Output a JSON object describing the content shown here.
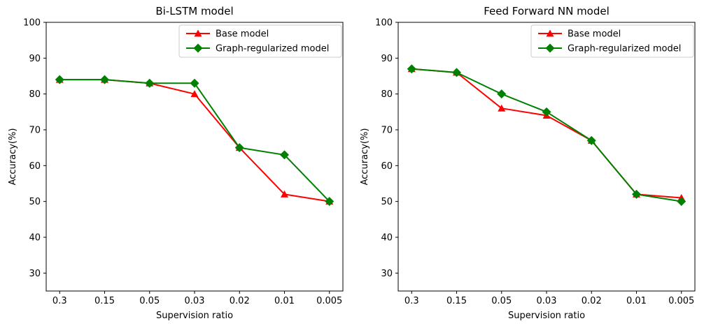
{
  "figure": {
    "background": "#ffffff",
    "axis_color": "#000000",
    "legend_border_color": "#cccccc",
    "legend_background": "#ffffff"
  },
  "chart_data": [
    {
      "type": "line",
      "title": "Bi-LSTM model",
      "xlabel": "Supervision ratio",
      "ylabel": "Accuracy(%)",
      "categories": [
        "0.3",
        "0.15",
        "0.05",
        "0.03",
        "0.02",
        "0.01",
        "0.005"
      ],
      "yticks": [
        "30",
        "40",
        "50",
        "60",
        "70",
        "80",
        "90",
        "100"
      ],
      "ytick_values": [
        30,
        40,
        50,
        60,
        70,
        80,
        90,
        100
      ],
      "ylim": [
        25,
        100
      ],
      "grid": false,
      "legend_position": "upper right",
      "series": [
        {
          "name": "Base model",
          "color": "#ff0000",
          "marker": "triangle",
          "values": [
            84,
            84,
            83,
            80,
            65,
            52,
            50
          ]
        },
        {
          "name": "Graph-regularized model",
          "color": "#008000",
          "marker": "diamond",
          "values": [
            84,
            84,
            83,
            83,
            65,
            63,
            50
          ]
        }
      ]
    },
    {
      "type": "line",
      "title": "Feed Forward NN model",
      "xlabel": "Supervision ratio",
      "ylabel": "Accuracy(%)",
      "categories": [
        "0.3",
        "0.15",
        "0.05",
        "0.03",
        "0.02",
        "0.01",
        "0.005"
      ],
      "yticks": [
        "30",
        "40",
        "50",
        "60",
        "70",
        "80",
        "90",
        "100"
      ],
      "ytick_values": [
        30,
        40,
        50,
        60,
        70,
        80,
        90,
        100
      ],
      "ylim": [
        25,
        100
      ],
      "grid": false,
      "legend_position": "upper right",
      "series": [
        {
          "name": "Base model",
          "color": "#ff0000",
          "marker": "triangle",
          "values": [
            87,
            86,
            76,
            74,
            67,
            52,
            51
          ]
        },
        {
          "name": "Graph-regularized model",
          "color": "#008000",
          "marker": "diamond",
          "values": [
            87,
            86,
            80,
            75,
            67,
            52,
            50
          ]
        }
      ]
    }
  ]
}
